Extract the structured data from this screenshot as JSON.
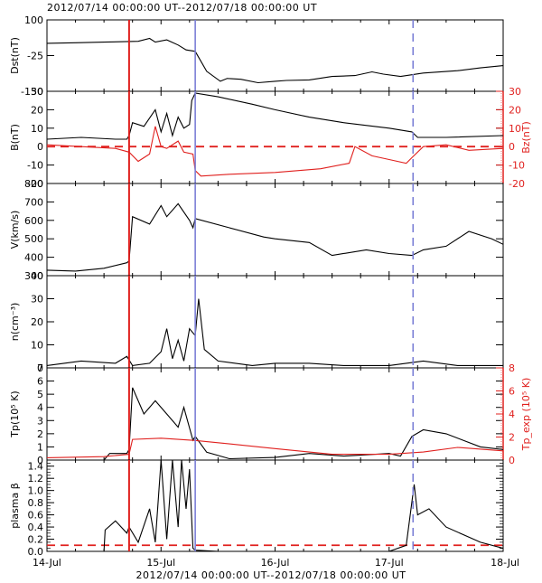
{
  "chart_data": {
    "type": "line",
    "title": "2012/07/14 00:00:00 UT--2012/07/18 00:00:00 UT",
    "xlabel": "2012/07/14 00:00:00 UT--2012/07/18 00:00:00 UT",
    "x_ticks": [
      "14-Jul",
      "15-Jul",
      "16-Jul",
      "17-Jul",
      "18-Jul"
    ],
    "x_range_days": [
      0,
      4
    ],
    "markers": [
      {
        "name": "shock / sheath start",
        "x_day": 0.72,
        "color": "#e0201e",
        "style": "solid"
      },
      {
        "name": "magnetic cloud start",
        "x_day": 1.3,
        "color": "#7b7fd6",
        "style": "solid"
      },
      {
        "name": "magnetic cloud end",
        "x_day": 3.21,
        "color": "#7b7fd6",
        "style": "dashed"
      }
    ],
    "panels": [
      {
        "id": "dst",
        "ylabel": "Dst(nT)",
        "ylim": [
          -150,
          100
        ],
        "yticks": [
          "100",
          "-25",
          "-150"
        ],
        "series": [
          {
            "name": "Dst",
            "color": "#000000",
            "x": [
              0,
              0.25,
              0.5,
              0.8,
              0.9,
              0.95,
              1.05,
              1.15,
              1.22,
              1.3,
              1.4,
              1.52,
              1.58,
              1.7,
              1.85,
              2.0,
              2.1,
              2.3,
              2.5,
              2.7,
              2.85,
              2.95,
              3.1,
              3.3,
              3.6,
              3.8,
              4.0
            ],
            "values": [
              18,
              20,
              22,
              25,
              35,
              22,
              30,
              12,
              -5,
              -10,
              -80,
              -115,
              -105,
              -108,
              -120,
              -115,
              -112,
              -110,
              -98,
              -95,
              -82,
              -90,
              -98,
              -86,
              -78,
              -68,
              -60
            ]
          }
        ]
      },
      {
        "id": "b",
        "ylabel": "B(nT)",
        "ylabel_right": "Bz(nT)",
        "ylim": [
          -20,
          30
        ],
        "yticks": [
          "30",
          "20",
          "10",
          "0",
          "-10",
          "-20"
        ],
        "zero_line": {
          "value": 0,
          "color": "#e0201e",
          "style": "dashed"
        },
        "series": [
          {
            "name": "B",
            "color": "#000000",
            "x": [
              0,
              0.3,
              0.6,
              0.7,
              0.72,
              0.75,
              0.85,
              0.95,
              1.0,
              1.05,
              1.1,
              1.15,
              1.2,
              1.25,
              1.27,
              1.3,
              1.5,
              1.8,
              2.0,
              2.3,
              2.6,
              3.0,
              3.2,
              3.25,
              3.5,
              4.0
            ],
            "values": [
              4,
              5,
              4,
              4,
              6,
              13,
              11,
              20,
              8,
              18,
              6,
              16,
              10,
              12,
              25,
              29,
              27,
              23,
              20,
              16,
              13,
              10,
              8,
              5,
              5,
              6
            ]
          },
          {
            "name": "Bz",
            "color": "#e0201e",
            "x": [
              0,
              0.3,
              0.6,
              0.72,
              0.8,
              0.9,
              0.95,
              1.0,
              1.05,
              1.15,
              1.2,
              1.28,
              1.3,
              1.35,
              1.6,
              2.0,
              2.4,
              2.65,
              2.7,
              2.85,
              3.0,
              3.15,
              3.2,
              3.3,
              3.5,
              3.7,
              4.0
            ],
            "values": [
              1,
              0,
              -1,
              -3,
              -8,
              -4,
              11,
              0,
              -1,
              3,
              -3,
              -4,
              -13,
              -16,
              -15,
              -14,
              -12,
              -9,
              0,
              -5,
              -7,
              -9,
              -6,
              0,
              1,
              -2,
              -1
            ]
          }
        ]
      },
      {
        "id": "v",
        "ylabel": "V(km/s)",
        "ylim": [
          300,
          800
        ],
        "yticks": [
          "800",
          "700",
          "600",
          "500",
          "400",
          "300"
        ],
        "series": [
          {
            "name": "V",
            "color": "#000000",
            "x": [
              0,
              0.25,
              0.5,
              0.7,
              0.72,
              0.75,
              0.9,
              1.0,
              1.05,
              1.15,
              1.25,
              1.28,
              1.3,
              1.6,
              1.9,
              2.0,
              2.3,
              2.5,
              2.8,
              3.0,
              3.2,
              3.3,
              3.5,
              3.7,
              3.9,
              4.0
            ],
            "values": [
              330,
              325,
              340,
              370,
              380,
              620,
              580,
              680,
              620,
              690,
              600,
              560,
              610,
              560,
              510,
              500,
              480,
              410,
              440,
              420,
              410,
              440,
              460,
              540,
              500,
              470
            ]
          }
        ]
      },
      {
        "id": "n",
        "ylabel": "n(cm⁻³)",
        "ylim": [
          0,
          40
        ],
        "yticks": [
          "40",
          "30",
          "20",
          "10",
          "0"
        ],
        "series": [
          {
            "name": "n",
            "color": "#000000",
            "x": [
              0,
              0.3,
              0.6,
              0.7,
              0.75,
              0.9,
              1.0,
              1.05,
              1.1,
              1.15,
              1.2,
              1.25,
              1.3,
              1.33,
              1.38,
              1.5,
              1.8,
              2.0,
              2.3,
              2.6,
              3.0,
              3.3,
              3.6,
              4.0
            ],
            "values": [
              1,
              3,
              2,
              5,
              1,
              2,
              7,
              17,
              4,
              12,
              3,
              17,
              14,
              30,
              8,
              3,
              1,
              2,
              2,
              1,
              1,
              3,
              1,
              1
            ]
          }
        ]
      },
      {
        "id": "tp",
        "ylabel": "Tp(10⁵ K)",
        "ylabel_right": "Tp_exp (10⁵ K)",
        "ylim": [
          0,
          7
        ],
        "yticks": [
          "7",
          "6",
          "5",
          "4",
          "3",
          "2",
          "1",
          "0"
        ],
        "ylim_right": [
          0,
          8
        ],
        "yticks_right": [
          "8",
          "6",
          "4",
          "2",
          "0"
        ],
        "series": [
          {
            "name": "Tp",
            "color": "#000000",
            "x": [
              0,
              0.5,
              0.55,
              0.7,
              0.72,
              0.75,
              0.85,
              0.95,
              1.05,
              1.15,
              1.2,
              1.28,
              1.3,
              1.4,
              1.6,
              2.0,
              2.3,
              2.6,
              3.0,
              3.1,
              3.2,
              3.3,
              3.5,
              3.8,
              4.0
            ],
            "values": [
              0,
              0,
              0.5,
              0.5,
              0.8,
              5.5,
              3.5,
              4.5,
              3.5,
              2.5,
              4.0,
              1.5,
              1.8,
              0.6,
              0.1,
              0.2,
              0.5,
              0.3,
              0.5,
              0.3,
              1.8,
              2.3,
              2.0,
              1.0,
              0.8
            ]
          },
          {
            "name": "Tp_exp",
            "color": "#e0201e",
            "x": [
              0,
              0.5,
              0.72,
              0.75,
              1.0,
              1.3,
              1.6,
              2.0,
              2.5,
              3.0,
              3.3,
              3.6,
              4.0
            ],
            "values": [
              0.2,
              0.3,
              0.5,
              1.8,
              1.9,
              1.7,
              1.4,
              1.0,
              0.5,
              0.5,
              0.7,
              1.1,
              0.8
            ]
          }
        ]
      },
      {
        "id": "beta",
        "ylabel": "plasma β",
        "ylim": [
          0,
          1.5
        ],
        "yticks": [
          "1.4",
          "1.2",
          "1.0",
          "0.8",
          "0.6",
          "0.4",
          "0.2",
          "0.0"
        ],
        "threshold_line": {
          "value": 0.1,
          "color": "#e0201e",
          "style": "dashed"
        },
        "series": [
          {
            "name": "beta",
            "color": "#000000",
            "x": [
              0,
              0.5,
              0.51,
              0.6,
              0.7,
              0.72,
              0.8,
              0.9,
              0.95,
              1.0,
              1.05,
              1.1,
              1.15,
              1.18,
              1.22,
              1.25,
              1.28,
              1.3,
              1.5,
              2.0,
              2.5,
              3.0,
              3.15,
              3.22,
              3.25,
              3.35,
              3.5,
              3.8,
              4.0
            ],
            "values": [
              0,
              0,
              0.35,
              0.5,
              0.3,
              0.4,
              0.15,
              0.7,
              0.15,
              1.5,
              0.2,
              1.5,
              0.4,
              1.5,
              0.7,
              1.35,
              0.05,
              0.02,
              0,
              0,
              0,
              0,
              0.1,
              1.1,
              0.6,
              0.7,
              0.4,
              0.15,
              0.05
            ]
          }
        ]
      }
    ]
  },
  "header": {
    "title": "2012/07/14 00:00:00 UT--2012/07/18 00:00:00 UT"
  },
  "footer": {
    "xlabel": "2012/07/14 00:00:00 UT--2012/07/18 00:00:00 UT"
  }
}
